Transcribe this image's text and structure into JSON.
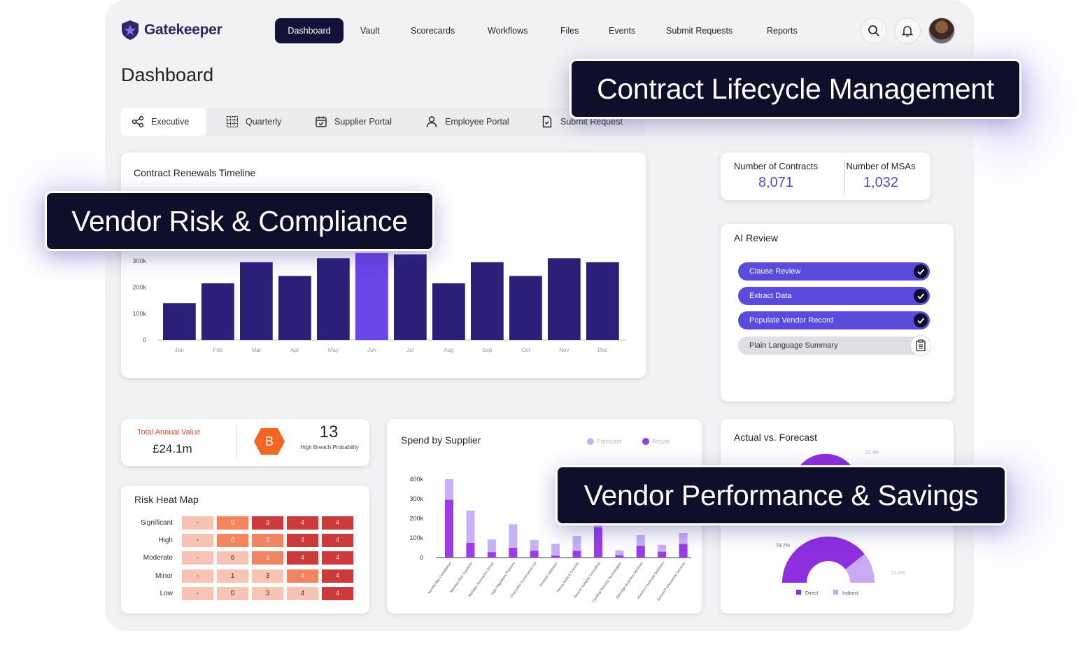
{
  "brand": {
    "name": "Gatekeeper"
  },
  "nav": [
    {
      "label": "Dashboard",
      "active": true
    },
    {
      "label": "Vault"
    },
    {
      "label": "Scorecards"
    },
    {
      "label": "Workflows"
    },
    {
      "label": "Files"
    },
    {
      "label": "Events"
    },
    {
      "label": "Submit Requests"
    },
    {
      "label": "Reports"
    }
  ],
  "header_icons": [
    "search-icon",
    "bell-icon",
    "avatar"
  ],
  "page": {
    "title": "Dashboard"
  },
  "tabs": [
    {
      "label": "Executive",
      "icon": "share-icon",
      "active": true
    },
    {
      "label": "Quarterly",
      "icon": "grid-icon"
    },
    {
      "label": "Supplier Portal",
      "icon": "calendar-check-icon"
    },
    {
      "label": "Employee Portal",
      "icon": "person-icon"
    },
    {
      "label": "Submit Request",
      "icon": "document-icon"
    }
  ],
  "renewals": {
    "title": "Contract Renewals Timeline",
    "chart_data": {
      "type": "bar",
      "categories": [
        "Jan",
        "Feb",
        "Mar",
        "Apr",
        "May",
        "Jun",
        "Jul",
        "Aug",
        "Sep",
        "Oct",
        "Nov",
        "Dec"
      ],
      "values": [
        140000,
        215000,
        295000,
        243000,
        310000,
        330000,
        325000,
        215000,
        295000,
        243000,
        310000,
        295000
      ],
      "y_ticks": [
        "0",
        "100k",
        "200k",
        "300k"
      ],
      "ylim": [
        0,
        340000
      ],
      "highlight_index": 5,
      "colors": {
        "bar": "#2b1f78",
        "highlight": "#6a45e8"
      }
    }
  },
  "stats": {
    "contracts": {
      "label": "Number of Contracts",
      "value": "8,071"
    },
    "msas": {
      "label": "Number of MSAs",
      "value": "1,032"
    }
  },
  "ai_review": {
    "title": "AI Review",
    "items": [
      {
        "label": "Clause Review",
        "done": true
      },
      {
        "label": "Extract Data",
        "done": true
      },
      {
        "label": "Populate Vendor Record",
        "done": true
      },
      {
        "label": "Plain Language Summary",
        "done": false
      }
    ]
  },
  "value_card": {
    "label": "Total Annual Value",
    "value": "£24.1m",
    "grade": "B",
    "count": "13",
    "count_label": "High Breach Probability"
  },
  "heatmap": {
    "title": "Risk Heat Map",
    "rows": [
      "Significant",
      "High",
      "Moderate",
      "Minor",
      "Low"
    ],
    "cells": [
      [
        "-",
        "0",
        "3",
        "4",
        "4"
      ],
      [
        "-",
        "0",
        "3",
        "4",
        "4"
      ],
      [
        "-",
        "6",
        "3",
        "4",
        "4"
      ],
      [
        "-",
        "1",
        "3",
        "4",
        "4"
      ],
      [
        "-",
        "0",
        "3",
        "4",
        "4"
      ]
    ],
    "cell_colors": [
      [
        "#f6c3b4",
        "#f4855e",
        "#cc3b3b",
        "#cc3b3b",
        "#cc3b3b"
      ],
      [
        "#f6c3b4",
        "#f4855e",
        "#f08563",
        "#cc3b3b",
        "#cc3b3b"
      ],
      [
        "#f6c3b4",
        "#f6c3b4",
        "#f08563",
        "#cc3b3b",
        "#cc3b3b"
      ],
      [
        "#f6c3b4",
        "#f6c3b4",
        "#f6c3b4",
        "#f08563",
        "#cc3b3b"
      ],
      [
        "#f6c3b4",
        "#f6c3b4",
        "#f6c3b4",
        "#f6c3b4",
        "#cc3b3b"
      ]
    ]
  },
  "spend": {
    "title": "Spend by Supplier",
    "chart_data": {
      "type": "bar",
      "stacked": true,
      "y_ticks": [
        "0",
        "100k",
        "200k",
        "300k",
        "400k"
      ],
      "ylim": [
        0,
        400000
      ],
      "legend": [
        "Forecast",
        "Actual"
      ],
      "colors": {
        "forecast": "#c8b2f6",
        "actual": "#9b3ce6"
      },
      "categories": [
        "Northbridge Compliance",
        "Meridian Risk Solutions",
        "Meridian Assurance Group",
        "High Regulatory Partners",
        "Chancellor Governance Ltd",
        "Sentinel Validation",
        "Nexus Audit & Controls",
        "Beacon Integrity Consulting",
        "Cardinal Security Technologies",
        "Oakridge Business Services",
        "Horizon Corporate Solutions",
        "Summit Professional Services"
      ],
      "series": [
        {
          "name": "Actual",
          "values": [
            295000,
            75000,
            28000,
            50000,
            35000,
            10000,
            35000,
            155000,
            12000,
            60000,
            30000,
            70000
          ]
        },
        {
          "name": "Forecast",
          "values": [
            105000,
            165000,
            65000,
            120000,
            55000,
            60000,
            75000,
            45000,
            25000,
            55000,
            35000,
            55000
          ]
        }
      ]
    }
  },
  "forecast": {
    "title": "Actual vs. Forecast",
    "top_pct": "21.4%",
    "left_pct": "78.7%",
    "right_pct": "21.3%",
    "legend": [
      "Direct",
      "Indirect"
    ],
    "chart_data": {
      "type": "pie",
      "categories": [
        "Direct",
        "Indirect"
      ],
      "values": [
        78.7,
        21.3
      ],
      "colors": {
        "direct": "#8e2fe0",
        "indirect": "#c9a8f4"
      }
    }
  },
  "banners": {
    "clm": "Contract Lifecycle Management",
    "vrc": "Vendor Risk & Compliance",
    "vps": "Vendor Performance & Savings"
  }
}
